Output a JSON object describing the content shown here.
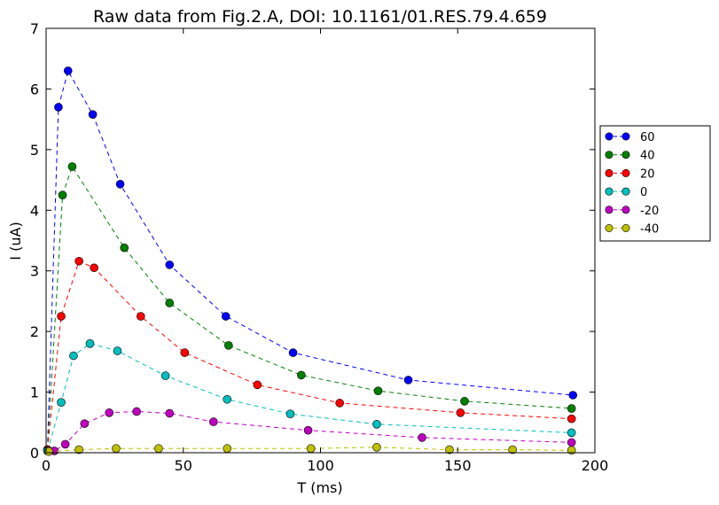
{
  "chart_data": {
    "type": "line",
    "title": "Raw data from Fig.2.A, DOI: 10.1161/01.RES.79.4.659",
    "xlabel": "T (ms)",
    "ylabel": "I (uA)",
    "xlim": [
      0,
      200
    ],
    "ylim": [
      0,
      7
    ],
    "xticks": [
      0,
      50,
      100,
      150,
      200
    ],
    "yticks": [
      0,
      1,
      2,
      3,
      4,
      5,
      6,
      7
    ],
    "grid": false,
    "legend_position": "right",
    "line_style": "dashed",
    "marker": "circle",
    "series": [
      {
        "name": "60",
        "color": "#0000ff",
        "points": [
          [
            0.5,
            0.05
          ],
          [
            4.5,
            5.7
          ],
          [
            8,
            6.3
          ],
          [
            17,
            5.58
          ],
          [
            27,
            4.43
          ],
          [
            45,
            3.1
          ],
          [
            65.5,
            2.25
          ],
          [
            90,
            1.65
          ],
          [
            132,
            1.2
          ],
          [
            192,
            0.95
          ]
        ]
      },
      {
        "name": "40",
        "color": "#008000",
        "points": [
          [
            0.5,
            0.05
          ],
          [
            6,
            4.25
          ],
          [
            9.5,
            4.72
          ],
          [
            28.5,
            3.38
          ],
          [
            45,
            2.47
          ],
          [
            66.5,
            1.77
          ],
          [
            93,
            1.28
          ],
          [
            121,
            1.02
          ],
          [
            152.5,
            0.85
          ],
          [
            191.5,
            0.73
          ]
        ]
      },
      {
        "name": "20",
        "color": "#ff0000",
        "points": [
          [
            0.5,
            0.05
          ],
          [
            5.5,
            2.25
          ],
          [
            12,
            3.16
          ],
          [
            17.5,
            3.05
          ],
          [
            34.5,
            2.25
          ],
          [
            50.5,
            1.65
          ],
          [
            77,
            1.12
          ],
          [
            107,
            0.82
          ],
          [
            151,
            0.66
          ],
          [
            191.5,
            0.56
          ]
        ]
      },
      {
        "name": "0",
        "color": "#00bfbf",
        "points": [
          [
            0.5,
            0.03
          ],
          [
            5.5,
            0.83
          ],
          [
            10,
            1.6
          ],
          [
            16,
            1.8
          ],
          [
            26,
            1.68
          ],
          [
            43.5,
            1.27
          ],
          [
            66,
            0.88
          ],
          [
            89,
            0.64
          ],
          [
            120.5,
            0.47
          ],
          [
            191.5,
            0.33
          ]
        ]
      },
      {
        "name": "-20",
        "color": "#bf00bf",
        "points": [
          [
            1,
            0.02
          ],
          [
            3,
            0.03
          ],
          [
            7,
            0.14
          ],
          [
            14,
            0.48
          ],
          [
            23,
            0.66
          ],
          [
            33,
            0.68
          ],
          [
            45,
            0.65
          ],
          [
            61,
            0.51
          ],
          [
            95.5,
            0.37
          ],
          [
            137,
            0.25
          ],
          [
            191.5,
            0.17
          ]
        ]
      },
      {
        "name": "-40",
        "color": "#bfbf00",
        "points": [
          [
            1,
            0.02
          ],
          [
            12,
            0.05
          ],
          [
            25.5,
            0.07
          ],
          [
            41,
            0.07
          ],
          [
            66,
            0.07
          ],
          [
            96.5,
            0.07
          ],
          [
            120.5,
            0.09
          ],
          [
            147,
            0.05
          ],
          [
            170,
            0.05
          ],
          [
            191.5,
            0.04
          ]
        ]
      }
    ]
  }
}
